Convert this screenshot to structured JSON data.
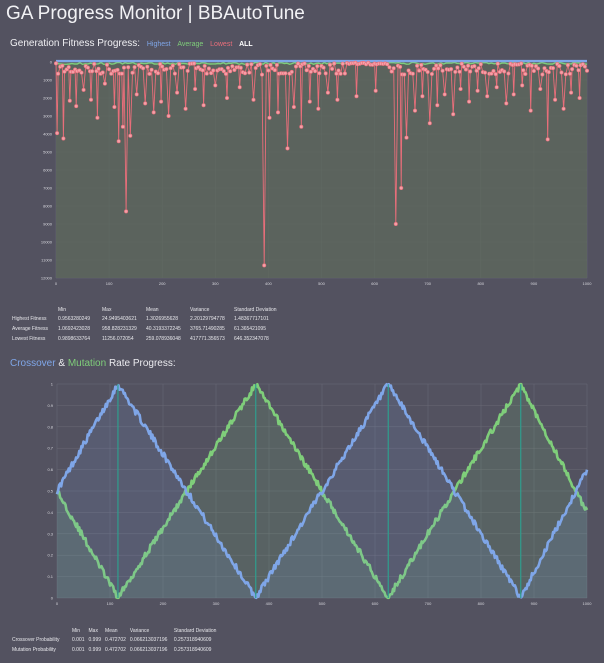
{
  "page": {
    "title": "GA Progress Monitor | BBAutoTune"
  },
  "fitness_section": {
    "heading": "Generation Fitness Progress:",
    "legend": [
      {
        "label": "Highest",
        "color": "#7fa6e8"
      },
      {
        "label": "Average",
        "color": "#7fce7a"
      },
      {
        "label": "Lowest",
        "color": "#e86e7a"
      },
      {
        "label": "ALL",
        "color": "#ffffff"
      }
    ]
  },
  "fitness_stats": {
    "headers": [
      "",
      "Min",
      "Max",
      "Mean",
      "Variance",
      "Standard Deviation"
    ],
    "rows": [
      [
        "Highest Fitness",
        "0.9563280249",
        "24.9495403621",
        "1.3026955628",
        "2.20129794778",
        "1.48367717101"
      ],
      [
        "Average Fitness",
        "1.0692423028",
        "958.828231329",
        "40.3193372245",
        "3765.71490285",
        "61.365421095"
      ],
      [
        "Lowest Fitness",
        "0.9898633764",
        "11256.072054",
        "259.078936048",
        "417771.356573",
        "646.352347078"
      ]
    ]
  },
  "rates_section": {
    "heading_parts": [
      {
        "text": "Crossover",
        "color": "#7fa6e8"
      },
      {
        "text": " & ",
        "color": "#ececf0"
      },
      {
        "text": "Mutation",
        "color": "#7fce7a"
      },
      {
        "text": " Rate Progress:",
        "color": "#ececf0"
      }
    ]
  },
  "rate_stats": {
    "headers": [
      "",
      "Min",
      "Max",
      "Mean",
      "Variance",
      "Standard Deviation"
    ],
    "rows": [
      [
        "Crossover Probability",
        "0.001",
        "0.999",
        "0.472702",
        "0.066213037196",
        "0.257318940609"
      ],
      [
        "Mutation Probability",
        "0.001",
        "0.999",
        "0.472702",
        "0.066213037196",
        "0.257318940609"
      ]
    ]
  },
  "chart_data": [
    {
      "type": "line",
      "x_ticks": [
        0,
        100,
        200,
        300,
        400,
        500,
        600,
        700,
        800,
        900,
        1000
      ],
      "y_ticks": [
        0,
        1000,
        2000,
        3000,
        4000,
        5000,
        6000,
        7000,
        8000,
        9000,
        10000,
        11000,
        12000
      ],
      "xlim": [
        0,
        1000
      ],
      "ylim": [
        0,
        12000
      ],
      "y_inverted": true,
      "grid": true,
      "colors": {
        "highest": "#7fa6e8",
        "average": "#7fce7a",
        "lowest": "#e86e7a",
        "area": "#5d6a5c"
      },
      "series": [
        {
          "name": "Highest",
          "values_summary": "approximately 1 for all generations"
        },
        {
          "name": "Average",
          "values_summary": "mostly 20-100, up to ~960"
        },
        {
          "name": "Lowest",
          "values_summary": "mostly 100-600 with spikes"
        }
      ],
      "lowest_spikes": [
        [
          2,
          3950
        ],
        [
          14,
          4250
        ],
        [
          26,
          2150
        ],
        [
          38,
          2450
        ],
        [
          52,
          1550
        ],
        [
          66,
          2100
        ],
        [
          78,
          3100
        ],
        [
          92,
          1200
        ],
        [
          110,
          2500
        ],
        [
          118,
          4400
        ],
        [
          126,
          3600
        ],
        [
          132,
          8300
        ],
        [
          140,
          4100
        ],
        [
          152,
          1800
        ],
        [
          168,
          2300
        ],
        [
          184,
          2800
        ],
        [
          198,
          2200
        ],
        [
          212,
          3000
        ],
        [
          228,
          1700
        ],
        [
          244,
          2600
        ],
        [
          262,
          1500
        ],
        [
          278,
          2400
        ],
        [
          300,
          1300
        ],
        [
          322,
          2000
        ],
        [
          346,
          1400
        ],
        [
          372,
          2100
        ],
        [
          392,
          11300
        ],
        [
          402,
          3100
        ],
        [
          418,
          2800
        ],
        [
          436,
          4800
        ],
        [
          448,
          2500
        ],
        [
          462,
          3600
        ],
        [
          478,
          2200
        ],
        [
          494,
          2600
        ],
        [
          512,
          1700
        ],
        [
          530,
          2100
        ],
        [
          548,
          1500
        ],
        [
          566,
          1900
        ],
        [
          584,
          1300
        ],
        [
          602,
          1600
        ],
        [
          620,
          1800
        ],
        [
          640,
          9000
        ],
        [
          650,
          7000
        ],
        [
          660,
          4200
        ],
        [
          676,
          2700
        ],
        [
          690,
          1900
        ],
        [
          704,
          3400
        ],
        [
          718,
          2400
        ],
        [
          732,
          1800
        ],
        [
          748,
          2900
        ],
        [
          762,
          1500
        ],
        [
          778,
          2200
        ],
        [
          794,
          1600
        ],
        [
          812,
          1900
        ],
        [
          830,
          1400
        ],
        [
          848,
          2300
        ],
        [
          862,
          1800
        ],
        [
          878,
          1300
        ],
        [
          894,
          2700
        ],
        [
          912,
          1500
        ],
        [
          926,
          4300
        ],
        [
          940,
          2100
        ],
        [
          956,
          2600
        ],
        [
          970,
          1700
        ],
        [
          986,
          2000
        ]
      ]
    },
    {
      "type": "line",
      "x_ticks": [
        0,
        100,
        200,
        300,
        400,
        500,
        600,
        700,
        800,
        900,
        1000
      ],
      "y_ticks": [
        0,
        0.1,
        0.2,
        0.3,
        0.4,
        0.5,
        0.6,
        0.7,
        0.8,
        0.9,
        1
      ],
      "xlim": [
        0,
        1000
      ],
      "ylim": [
        0,
        1
      ],
      "grid": true,
      "colors": {
        "crossover": "#7fa6e8",
        "mutation": "#7fce7a",
        "marker": "#2f9e8e"
      },
      "series": [
        {
          "name": "Crossover",
          "x": [
            0,
            115,
            375,
            625,
            875,
            1000
          ],
          "values": [
            0.5,
            0.999,
            0.001,
            0.999,
            0.001,
            0.6
          ]
        },
        {
          "name": "Mutation",
          "x": [
            0,
            115,
            375,
            625,
            875,
            1000
          ],
          "values": [
            0.5,
            0.001,
            0.999,
            0.001,
            0.999,
            0.4
          ]
        }
      ],
      "marker_lines_x": [
        115,
        375,
        625,
        875
      ]
    }
  ]
}
